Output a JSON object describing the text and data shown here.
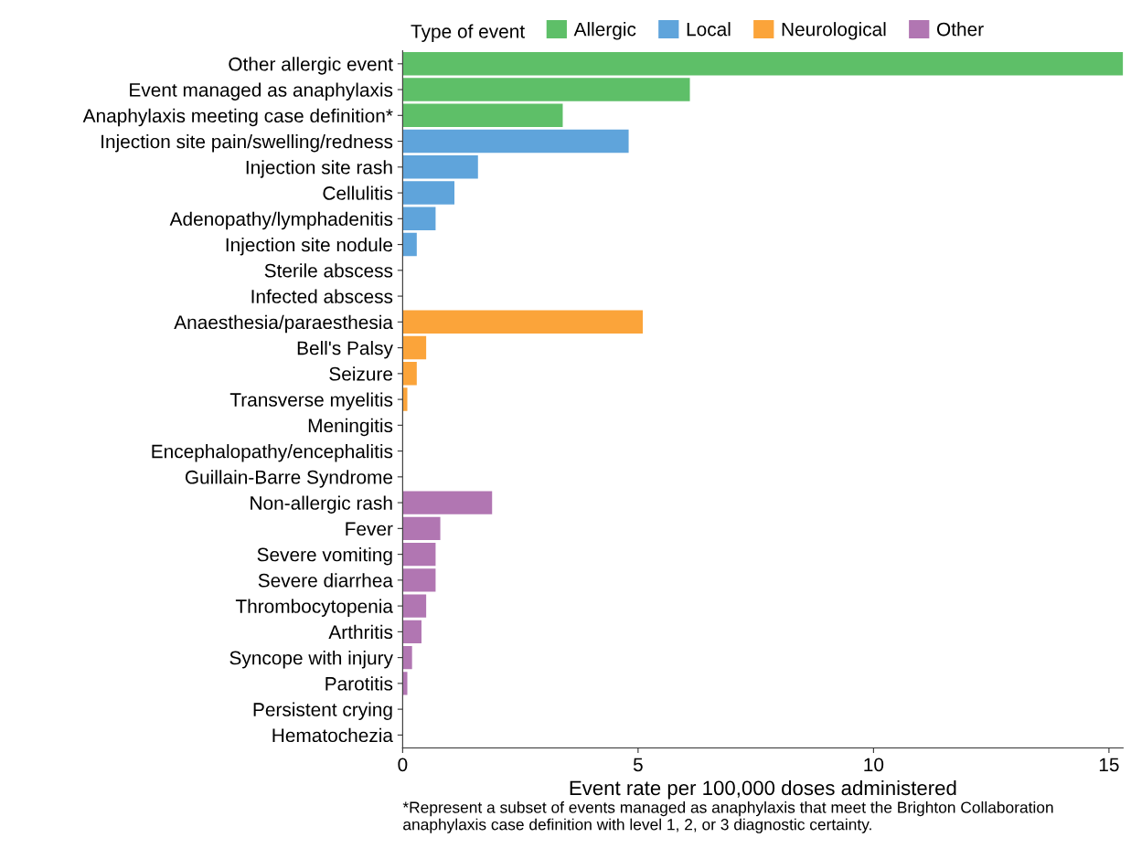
{
  "chart_data": {
    "type": "bar",
    "orientation": "horizontal",
    "categories": [
      "Other allergic event",
      "Event managed as anaphylaxis",
      "Anaphylaxis meeting case definition*",
      "Injection site pain/swelling/redness",
      "Injection site rash",
      "Cellulitis",
      "Adenopathy/lymphadenitis",
      "Injection site nodule",
      "Sterile abscess",
      "Infected abscess",
      "Anaesthesia/paraesthesia",
      "Bell's Palsy",
      "Seizure",
      "Transverse myelitis",
      "Meningitis",
      "Encephalopathy/encephalitis",
      "Guillain-Barre Syndrome",
      "Non-allergic rash",
      "Fever",
      "Severe vomiting",
      "Severe diarrhea",
      "Thrombocytopenia",
      "Arthritis",
      "Syncope with injury",
      "Parotitis",
      "Persistent crying",
      "Hematochezia"
    ],
    "series": [
      {
        "name": "Allergic",
        "color": "#5ebf68",
        "values": [
          15.3,
          6.1,
          3.4,
          null,
          null,
          null,
          null,
          null,
          null,
          null,
          null,
          null,
          null,
          null,
          null,
          null,
          null,
          null,
          null,
          null,
          null,
          null,
          null,
          null,
          null,
          null,
          null
        ]
      },
      {
        "name": "Local",
        "color": "#5fa4db",
        "values": [
          null,
          null,
          null,
          4.8,
          1.6,
          1.1,
          0.7,
          0.3,
          0,
          0,
          null,
          null,
          null,
          null,
          null,
          null,
          null,
          null,
          null,
          null,
          null,
          null,
          null,
          null,
          null,
          null,
          null
        ]
      },
      {
        "name": "Neurological",
        "color": "#fba43a",
        "values": [
          null,
          null,
          null,
          null,
          null,
          null,
          null,
          null,
          null,
          null,
          5.1,
          0.5,
          0.3,
          0.1,
          0,
          0,
          0,
          null,
          null,
          null,
          null,
          null,
          null,
          null,
          null,
          null,
          null
        ]
      },
      {
        "name": "Other",
        "color": "#b176b2",
        "values": [
          null,
          null,
          null,
          null,
          null,
          null,
          null,
          null,
          null,
          null,
          null,
          null,
          null,
          null,
          null,
          null,
          null,
          1.9,
          0.8,
          0.7,
          0.7,
          0.5,
          0.4,
          0.2,
          0.1,
          0,
          0
        ]
      }
    ],
    "xlabel": "Event rate per 100,000 doses administered",
    "xlim": [
      0,
      15.3
    ],
    "xticks": [
      0,
      5,
      10,
      15
    ],
    "legend": "top",
    "legend_title": "Type of event",
    "grid": false,
    "annotations": [
      "*Represent a subset of events managed as anaphylaxis that meet the Brighton Collaboration anaphylaxis case definition with level 1, 2, or 3 diagnostic certainty."
    ]
  }
}
